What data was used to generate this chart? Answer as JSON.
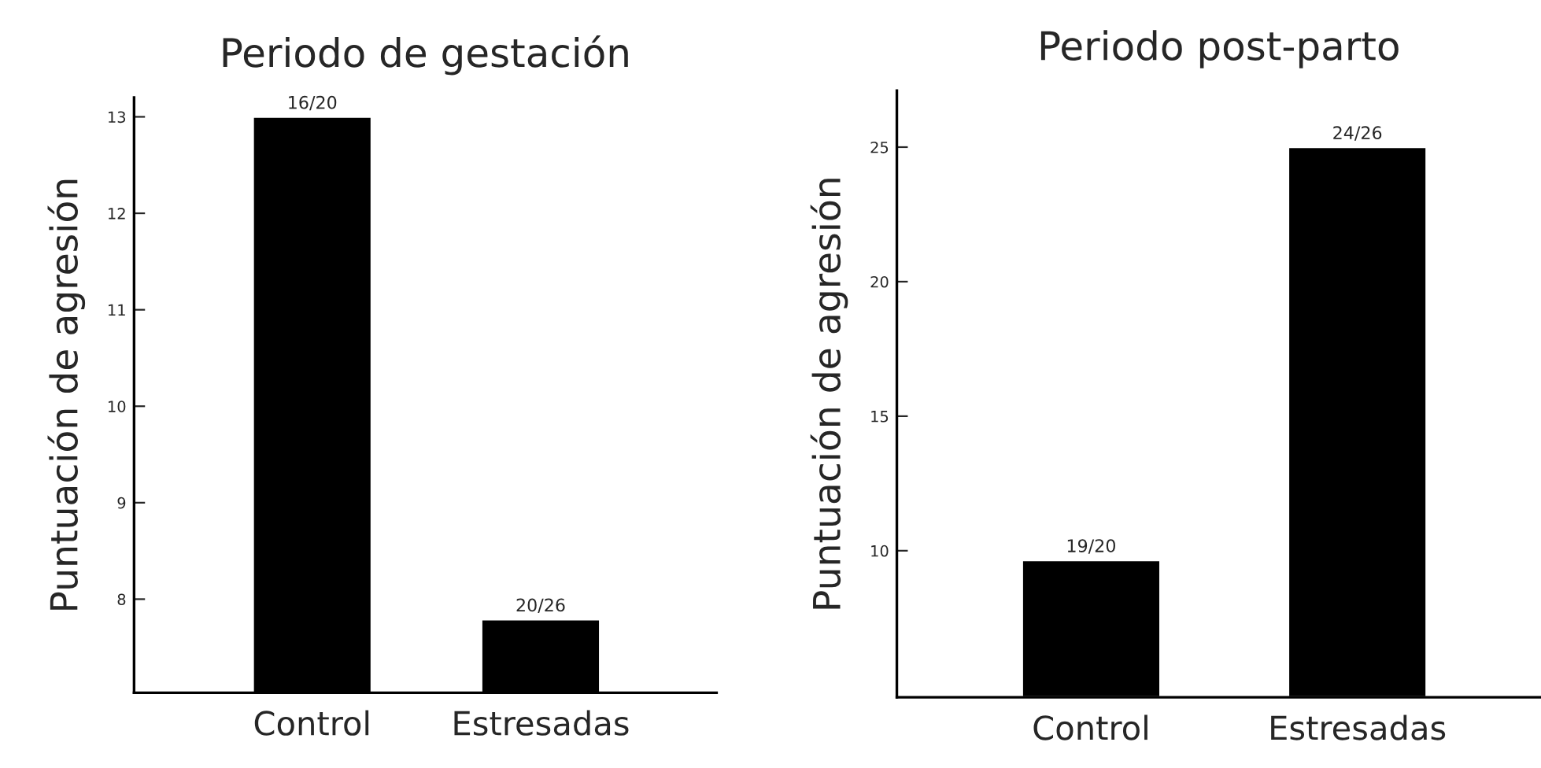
{
  "chart_data": [
    {
      "type": "bar",
      "title": "Periodo de gestación",
      "ylabel": "Puntuación de agresión",
      "categories": [
        "Control",
        "Estresadas"
      ],
      "values": [
        13,
        7.79
      ],
      "color": "#000000",
      "value_labels": [
        "16/20",
        "20/26"
      ],
      "ylim": [
        7.03,
        13.2
      ],
      "yticks": [
        8,
        9,
        10,
        11,
        12,
        13
      ]
    },
    {
      "type": "bar",
      "title": "Periodo post-parto",
      "ylabel": "Puntuación de agresión",
      "categories": [
        "Control",
        "Estresadas"
      ],
      "values": [
        9.65,
        25
      ],
      "color": "#000000",
      "value_labels": [
        "19/20",
        "24/26"
      ],
      "ylim": [
        4.55,
        27.1
      ],
      "yticks": [
        10,
        15,
        20,
        25
      ]
    }
  ]
}
